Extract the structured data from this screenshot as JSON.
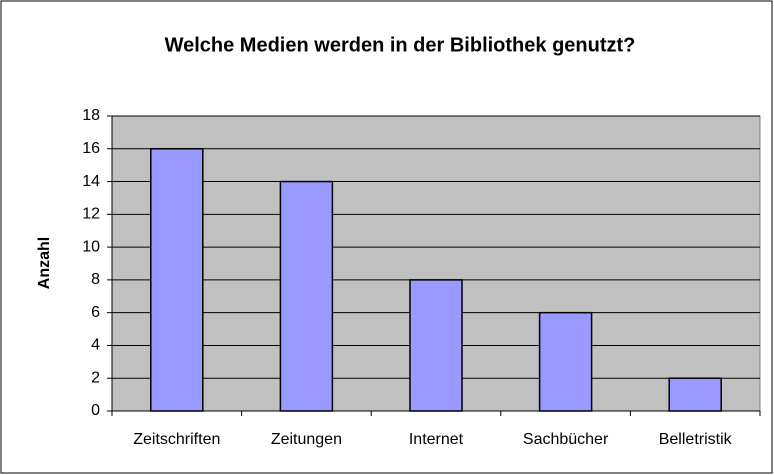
{
  "chart_data": {
    "type": "bar",
    "title": "Welche Medien werden in der Bibliothek genutzt?",
    "y_label": "Anzahl",
    "categories": [
      "Zeitschriften",
      "Zeitungen",
      "Internet",
      "Sachbücher",
      "Belletristik"
    ],
    "values": [
      16,
      14,
      8,
      6,
      2
    ],
    "color": "#9999ff",
    "ylim": [
      0,
      18
    ],
    "yticks": [
      0,
      2,
      4,
      6,
      8,
      10,
      12,
      14,
      16,
      18
    ],
    "grid": true
  }
}
